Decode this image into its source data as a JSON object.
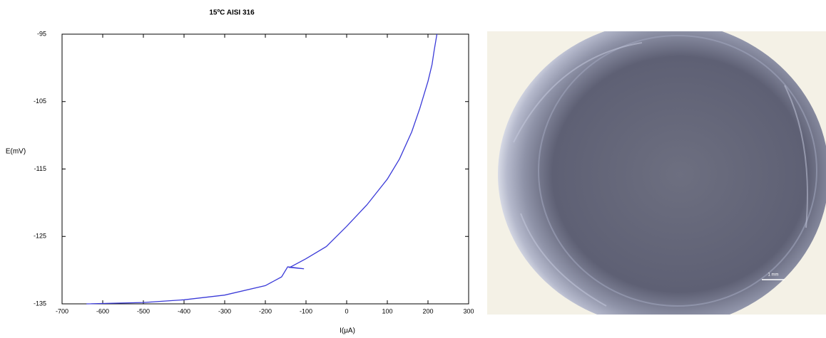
{
  "chart_data": {
    "type": "line",
    "title": "15ºC AISI 316",
    "x_label": "I(μA)",
    "y_label": "E(mV)",
    "xlim": [
      -700,
      300
    ],
    "xticks": [
      -700,
      -600,
      -500,
      -400,
      -300,
      -200,
      -100,
      0,
      100,
      200,
      300
    ],
    "ylim": [
      -135,
      -95
    ],
    "yticks": [
      -95,
      -105,
      -115,
      -125,
      -135
    ],
    "series": [
      {
        "name": "AISI 316",
        "color": "#3a3ad8",
        "x": [
          -640,
          -500,
          -400,
          -300,
          -200,
          -160,
          -145,
          -105,
          -140,
          -100,
          -50,
          0,
          50,
          100,
          130,
          160,
          180,
          200,
          210,
          215,
          222
        ],
        "values": [
          -135,
          -134.8,
          -134.4,
          -133.7,
          -132.3,
          -131,
          -129.5,
          -129.8,
          -129.6,
          -128.3,
          -126.5,
          -123.5,
          -120.3,
          -116.5,
          -113.5,
          -109.5,
          -106,
          -102,
          -99.5,
          -97.5,
          -95
        ]
      }
    ]
  },
  "image": {
    "scale_label": "1 mm"
  }
}
